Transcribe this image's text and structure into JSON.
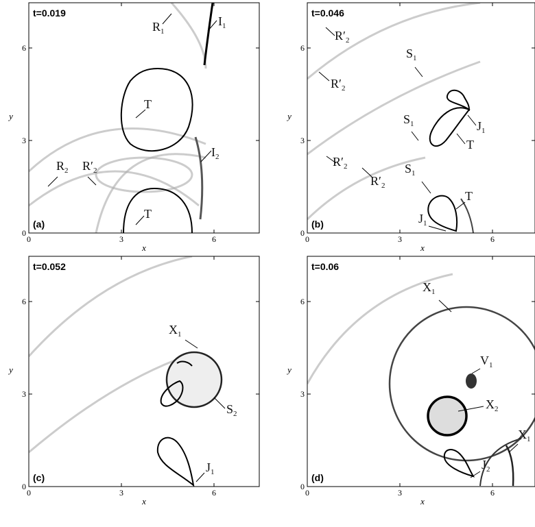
{
  "panels": [
    {
      "time": "t=0.019",
      "tag": "(a)",
      "x_label": "x",
      "y_label": "y",
      "x_ticks": [
        "0",
        "3",
        "6"
      ],
      "y_ticks": [
        "0",
        "3",
        "6"
      ],
      "annotations": [
        {
          "text": "R",
          "sub": "1"
        },
        {
          "text": "I",
          "sub": "1"
        },
        {
          "text": "T"
        },
        {
          "text": "R",
          "sub": "2"
        },
        {
          "text": "R′",
          "sub": "2"
        },
        {
          "text": "I",
          "sub": "2"
        },
        {
          "text": "T"
        }
      ]
    },
    {
      "time": "t=0.046",
      "tag": "(b)",
      "x_label": "x",
      "y_label": "y",
      "x_ticks": [
        "0",
        "3",
        "6"
      ],
      "y_ticks": [
        "0",
        "3",
        "6"
      ],
      "annotations": [
        {
          "text": "R′",
          "sub": "2"
        },
        {
          "text": "R′",
          "sub": "2"
        },
        {
          "text": "S",
          "sub": "1"
        },
        {
          "text": "S",
          "sub": "1"
        },
        {
          "text": "J",
          "sub": "1"
        },
        {
          "text": "T"
        },
        {
          "text": "R′",
          "sub": "2"
        },
        {
          "text": "R′",
          "sub": "2"
        },
        {
          "text": "S",
          "sub": "1"
        },
        {
          "text": "T"
        },
        {
          "text": "J",
          "sub": "1"
        }
      ]
    },
    {
      "time": "t=0.052",
      "tag": "(c)",
      "x_label": "x",
      "y_label": "y",
      "x_ticks": [
        "0",
        "3",
        "6"
      ],
      "y_ticks": [
        "0",
        "3",
        "6"
      ],
      "annotations": [
        {
          "text": "X",
          "sub": "1"
        },
        {
          "text": "S",
          "sub": "2"
        },
        {
          "text": "J",
          "sub": "1"
        }
      ]
    },
    {
      "time": "t=0.06",
      "tag": "(d)",
      "x_label": "x",
      "y_label": "y",
      "x_ticks": [
        "0",
        "3",
        "6"
      ],
      "y_ticks": [
        "0",
        "3",
        "6"
      ],
      "annotations": [
        {
          "text": "X",
          "sub": "1"
        },
        {
          "text": "V",
          "sub": "1"
        },
        {
          "text": "X",
          "sub": "2"
        },
        {
          "text": "X",
          "sub": "1"
        },
        {
          "text": "J",
          "sub": "2"
        }
      ]
    }
  ]
}
